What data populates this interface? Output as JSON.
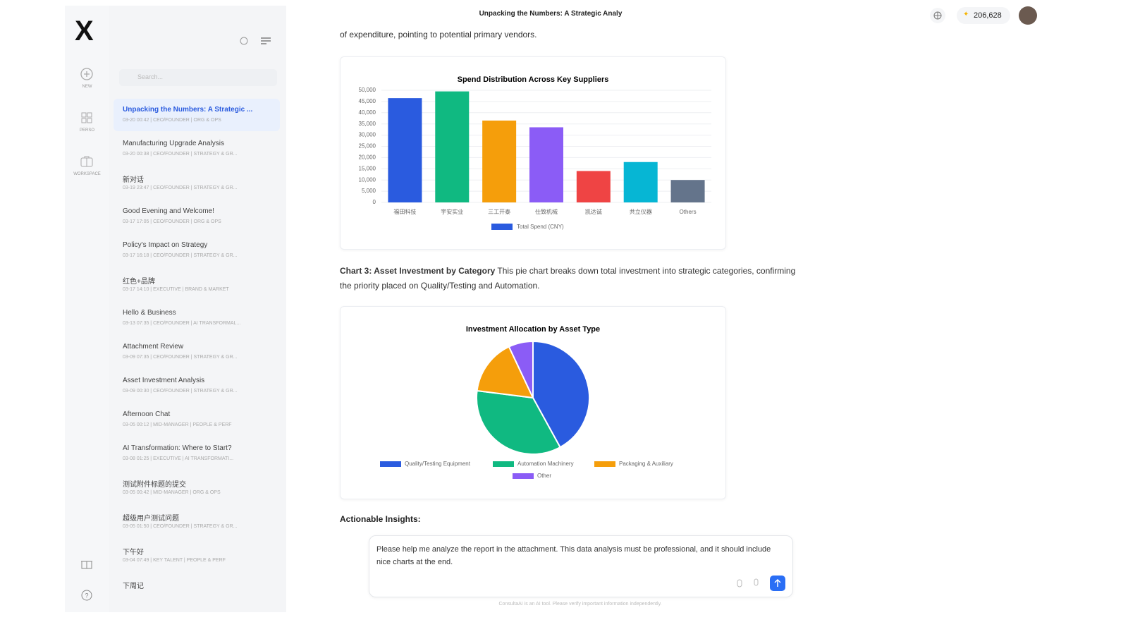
{
  "header": {
    "title": "Unpacking the Numbers: A Strategic Analy",
    "credits": "206,628"
  },
  "rail": {
    "logo": "X",
    "items": [
      "NEW",
      "PERSO",
      "WORKSPACE"
    ]
  },
  "sidebar": {
    "search_placeholder": "Search...",
    "conversations": [
      {
        "title": "Unpacking the Numbers: A Strategic ...",
        "meta": "03-20 00:42 | CEO/FOUNDER | ORG & OPS"
      },
      {
        "title": "Manufacturing Upgrade Analysis",
        "meta": "03-20 00:38 | CEO/FOUNDER | STRATEGY & GR..."
      },
      {
        "title": "新对话",
        "meta": "03-19 23:47 | CEO/FOUNDER | STRATEGY & GR..."
      },
      {
        "title": "Good Evening and Welcome!",
        "meta": "03-17 17:05 | CEO/FOUNDER | ORG & OPS"
      },
      {
        "title": "Policy's Impact on Strategy",
        "meta": "03-17 16:18 | CEO/FOUNDER | STRATEGY & GR..."
      },
      {
        "title": "红色+品牌",
        "meta": "03-17 14:10 | EXECUTIVE | BRAND & MARKET"
      },
      {
        "title": "Hello & Business",
        "meta": "03-13 07:35 | CEO/FOUNDER | AI TRANSFORMAL..."
      },
      {
        "title": "Attachment Review",
        "meta": "03-09 07:35 | CEO/FOUNDER | STRATEGY & GR..."
      },
      {
        "title": "Asset Investment Analysis",
        "meta": "03-09 00:30 | CEO/FOUNDER | STRATEGY & GR..."
      },
      {
        "title": "Afternoon Chat",
        "meta": "03-05 00:12 | MID-MANAGER | PEOPLE & PERF"
      },
      {
        "title": "AI Transformation: Where to Start?",
        "meta": "03-08 01:25 | EXECUTIVE | AI TRANSFORMATI..."
      },
      {
        "title": "测试附件标题的提交",
        "meta": "03-05 00:42 | MID-MANAGER | ORG & OPS"
      },
      {
        "title": "超级用户测试问题",
        "meta": "03-05 01:50 | CEO/FOUNDER | STRATEGY & GR..."
      },
      {
        "title": "下午好",
        "meta": "03-04 07:49 | KEY TALENT | PEOPLE & PERF"
      },
      {
        "title": "下周记",
        "meta": ""
      }
    ]
  },
  "content": {
    "intro": "of expenditure, pointing to potential primary vendors.",
    "chart3_heading": "Chart 3: Asset Investment by Category",
    "chart3_text": " This pie chart breaks down total investment into strategic categories, confirming the priority placed on Quality/Testing and Automation.",
    "insights_heading": "Actionable Insights:"
  },
  "input": {
    "text": "Please help me analyze the report in the attachment. This data analysis must be professional, and it should include nice charts at the end."
  },
  "footer": "ConsultaAI is an AI tool. Please verify important information independently.",
  "chart_data": [
    {
      "type": "bar",
      "title": "Spend Distribution Across Key Suppliers",
      "categories": [
        "福田科技",
        "宇安实业",
        "三工开泰",
        "仕致机械",
        "凯达诚",
        "共立仪器",
        "Others"
      ],
      "series": [
        {
          "name": "Total Spend (CNY)",
          "color": "#2a5bdf",
          "values": [
            46500,
            49500,
            36500,
            33500,
            14000,
            18000,
            10000
          ]
        }
      ],
      "colors": [
        "#2a5bdf",
        "#10b981",
        "#f59e0b",
        "#8b5cf6",
        "#ef4444",
        "#06b6d4",
        "#64748b"
      ],
      "ylim": [
        0,
        50000
      ],
      "yticks": [
        0,
        {
          "value": 5000,
          "label": "5,000"
        },
        {
          "value": 10000,
          "label": "10,000"
        },
        {
          "value": 15000,
          "label": "15,000"
        },
        {
          "value": 20000,
          "label": "20,000"
        },
        {
          "value": 25000,
          "label": "25,000"
        },
        {
          "value": 30000,
          "label": "30,000"
        },
        {
          "value": 35000,
          "label": "35,000"
        },
        {
          "value": 40000,
          "label": "40,000"
        },
        {
          "value": 45000,
          "label": "45,000"
        },
        {
          "value": 50000,
          "label": "50,000"
        }
      ],
      "grid": true
    },
    {
      "type": "pie",
      "title": "Investment Allocation by Asset Type",
      "categories": [
        "Quality/Testing Equipment",
        "Automation Machinery",
        "Packaging & Auxiliary",
        "Other"
      ],
      "values": [
        42,
        35,
        16,
        7
      ],
      "colors": [
        "#2a5bdf",
        "#10b981",
        "#f59e0b",
        "#8b5cf6"
      ]
    }
  ]
}
